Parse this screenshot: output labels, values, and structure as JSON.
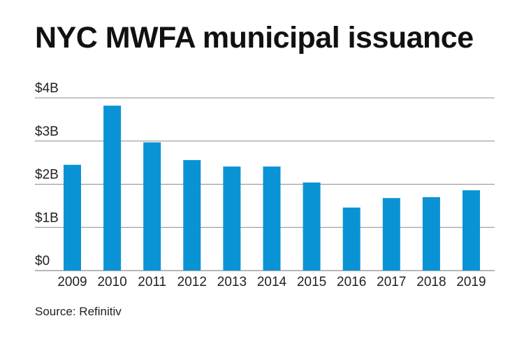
{
  "chart_data": {
    "type": "bar",
    "title": "NYC MWFA municipal issuance",
    "categories": [
      "2009",
      "2010",
      "2011",
      "2012",
      "2013",
      "2014",
      "2015",
      "2016",
      "2017",
      "2018",
      "2019"
    ],
    "values": [
      2.45,
      3.82,
      2.97,
      2.56,
      2.41,
      2.41,
      2.04,
      1.46,
      1.68,
      1.7,
      1.86
    ],
    "unit": "billions of dollars",
    "ylim": [
      0,
      4
    ],
    "yticks": [
      0,
      1,
      2,
      3,
      4
    ],
    "ytick_labels": [
      "$0",
      "$1B",
      "$2B",
      "$3B",
      "$4B"
    ],
    "xlabel": "",
    "ylabel": "",
    "grid": true,
    "bar_color": "#0a93d4",
    "grid_color": "#8c8c8c"
  },
  "source": "Source: Refinitiv"
}
